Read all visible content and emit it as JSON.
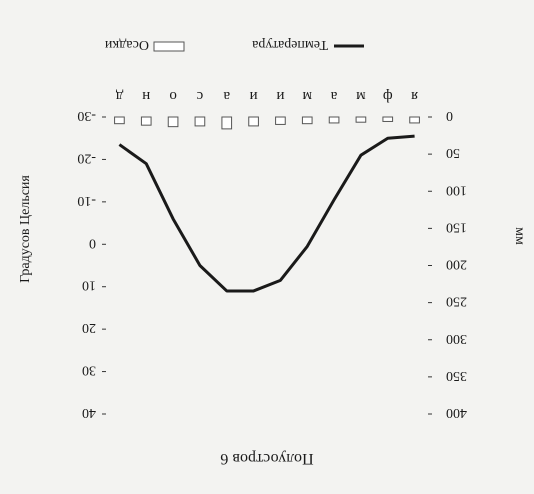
{
  "chart_data": {
    "type": "bar+line",
    "title": "Полуостров 6",
    "orientation": "rotated-180",
    "categories": [
      "я",
      "ф",
      "м",
      "а",
      "м",
      "и",
      "и",
      "а",
      "с",
      "о",
      "н",
      "д"
    ],
    "series": [
      {
        "name": "Осадки",
        "type": "bar",
        "axis": "precip",
        "values": [
          8,
          6,
          7,
          8,
          9,
          10,
          12,
          16,
          12,
          13,
          11,
          9
        ]
      },
      {
        "name": "Температура",
        "type": "line",
        "axis": "temp",
        "values": [
          -25.5,
          -25,
          -21,
          -10.5,
          0.5,
          8.5,
          11,
          11,
          5,
          -6,
          -19,
          -23.5
        ]
      }
    ],
    "precip_axis": {
      "label": "мм",
      "min": 0,
      "max": 400,
      "step": 50,
      "ticks": [
        "0",
        "50",
        "100",
        "150",
        "200",
        "250",
        "300",
        "350",
        "400"
      ]
    },
    "temp_axis": {
      "label": "Градусов Цельсия",
      "min": -30,
      "max": 40,
      "step": 10,
      "ticks": [
        "-30",
        "-20",
        "-10",
        "0",
        "10",
        "20",
        "30",
        "40"
      ]
    },
    "legend": {
      "placement": "bottom"
    },
    "grid": false,
    "colors": {
      "bar_fill": "#ffffff",
      "bar_stroke": "#555555",
      "line": "#1a1a1a",
      "background": "#f3f3f1"
    }
  }
}
